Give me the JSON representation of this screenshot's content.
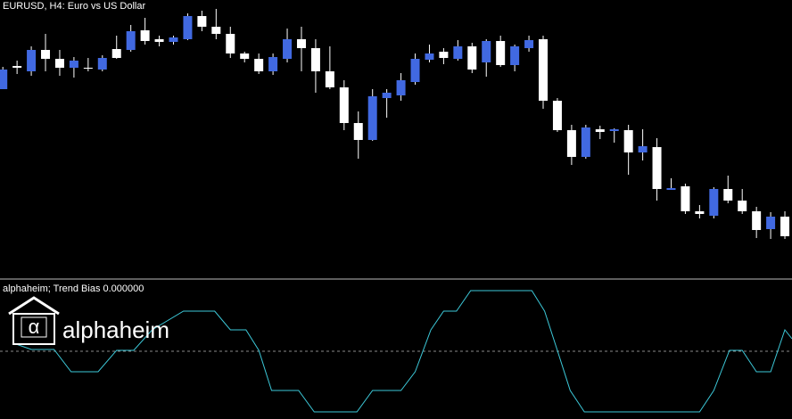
{
  "chart_data": [
    {
      "type": "candlestick",
      "title": "EURUSD, H4:  Euro vs US Dollar",
      "open": [
        210,
        236,
        230,
        254,
        244,
        234,
        234,
        232,
        255,
        254,
        276,
        266,
        263,
        266,
        292,
        280,
        272,
        250,
        244,
        230,
        244,
        266,
        256,
        230,
        212,
        172,
        153,
        200,
        203,
        218,
        243,
        252,
        244,
        258,
        240,
        264,
        237,
        256,
        266,
        197,
        164,
        134,
        165,
        163,
        164,
        139,
        145,
        97,
        101,
        73,
        68,
        98,
        85,
        73,
        53,
        67
      ],
      "high": [
        235,
        242,
        258,
        272,
        254,
        246,
        245,
        248,
        270,
        282,
        290,
        270,
        270,
        295,
        298,
        300,
        280,
        252,
        250,
        250,
        278,
        280,
        266,
        258,
        220,
        185,
        210,
        210,
        228,
        250,
        260,
        256,
        265,
        262,
        266,
        270,
        260,
        270,
        270,
        200,
        170,
        170,
        169,
        166,
        170,
        165,
        155,
        110,
        104,
        80,
        100,
        113,
        98,
        78,
        72,
        73
      ],
      "low": [
        210,
        227,
        225,
        230,
        225,
        223,
        230,
        230,
        244,
        252,
        260,
        258,
        260,
        265,
        275,
        266,
        245,
        240,
        227,
        226,
        240,
        230,
        206,
        210,
        164,
        132,
        152,
        178,
        197,
        215,
        240,
        238,
        242,
        228,
        224,
        235,
        230,
        252,
        188,
        162,
        125,
        132,
        154,
        150,
        114,
        130,
        85,
        97,
        70,
        65,
        65,
        82,
        70,
        43,
        42,
        42
      ],
      "close": [
        232,
        234,
        254,
        244,
        234,
        242,
        233,
        245,
        245,
        275,
        264,
        263,
        268,
        292,
        280,
        272,
        250,
        244,
        230,
        246,
        266,
        256,
        230,
        212,
        172,
        153,
        202,
        206,
        220,
        244,
        250,
        245,
        258,
        232,
        264,
        237,
        258,
        265,
        197,
        164,
        134,
        167,
        162,
        165,
        139,
        146,
        98,
        99,
        73,
        70,
        98,
        85,
        73,
        52,
        67,
        45
      ],
      "up_color": "#4169e1",
      "down_color": "#ffffff",
      "ylim": [
        0,
        310
      ],
      "xlim": [
        -0.2,
        55.5
      ]
    },
    {
      "type": "line",
      "title": "alphaheim; Trend Bias 0.000000",
      "x": [
        0.75,
        2.0,
        3.6,
        4.8,
        6.7,
        8.0,
        9.2,
        10.5,
        12.7,
        14.9,
        16.0,
        17.1,
        18.0,
        18.9,
        20.8,
        21.9,
        24.9,
        26.0,
        28.0,
        29.0,
        30.1,
        31.0,
        31.9,
        32.9,
        37.2,
        38.1,
        39.0,
        39.9,
        40.9,
        49.0,
        50.0,
        51.1,
        52.0,
        53.0,
        54.0,
        55.0,
        55.5
      ],
      "values": [
        9,
        2,
        2,
        -23,
        -23,
        1,
        1,
        24,
        45,
        45,
        24,
        24,
        1,
        -44,
        -44,
        -68,
        -68,
        -44,
        -44,
        -23,
        24,
        45,
        45,
        68,
        68,
        45,
        1,
        -44,
        -68,
        -68,
        -44,
        1,
        1,
        -23,
        -23,
        24,
        14
      ],
      "color": "#3cc8d8",
      "ylim": [
        -76,
        78
      ],
      "xlim": [
        -0.2,
        55.5
      ],
      "reference_line": 0,
      "reference_color": "#8a8a8a"
    }
  ],
  "logo": {
    "symbol": "α",
    "text": "alphaheim"
  }
}
